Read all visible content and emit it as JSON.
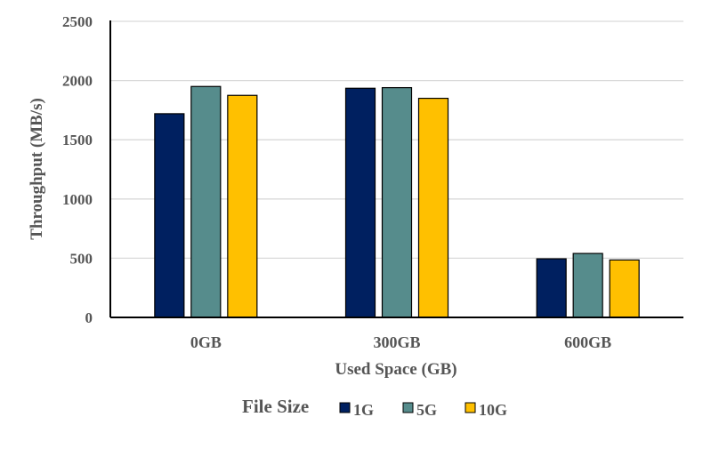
{
  "chart_data": {
    "type": "bar",
    "title": "",
    "xlabel": "Used Space (GB)",
    "ylabel": "Throughput (MB/s)",
    "categories": [
      "0GB",
      "300GB",
      "600GB"
    ],
    "ylim": [
      0,
      2500
    ],
    "yticks": [
      0,
      500,
      1000,
      1500,
      2000,
      2500
    ],
    "grid": true,
    "legend": {
      "title": "File Size",
      "placement": "bottom"
    },
    "series": [
      {
        "name": "1G",
        "color": "#002060",
        "values": [
          1720,
          1935,
          495
        ]
      },
      {
        "name": "5G",
        "color": "#568C8C",
        "values": [
          1950,
          1940,
          540
        ]
      },
      {
        "name": "10G",
        "color": "#FFC000",
        "values": [
          1875,
          1850,
          485
        ]
      }
    ]
  }
}
